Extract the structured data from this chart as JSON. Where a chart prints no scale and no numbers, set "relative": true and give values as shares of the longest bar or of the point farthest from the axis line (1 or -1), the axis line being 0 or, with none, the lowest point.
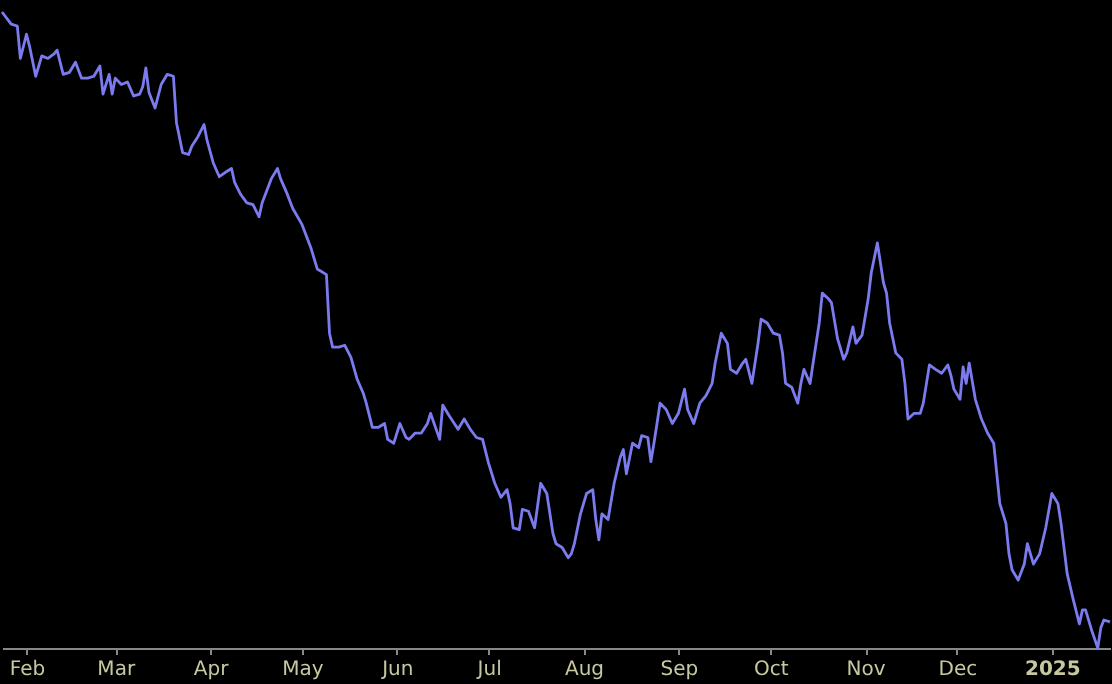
{
  "chart_data": {
    "type": "line",
    "relative": true,
    "xlim": [
      "2024-01-24",
      "2025-01-20"
    ],
    "xticks": [
      {
        "value": "2024-02-01",
        "label": "Feb"
      },
      {
        "value": "2024-03-01",
        "label": "Mar"
      },
      {
        "value": "2024-04-01",
        "label": "Apr"
      },
      {
        "value": "2024-05-01",
        "label": "May"
      },
      {
        "value": "2024-06-01",
        "label": "Jun"
      },
      {
        "value": "2024-07-01",
        "label": "Jul"
      },
      {
        "value": "2024-08-01",
        "label": "Aug"
      },
      {
        "value": "2024-09-01",
        "label": "Sep"
      },
      {
        "value": "2024-10-01",
        "label": "Oct"
      },
      {
        "value": "2024-11-01",
        "label": "Nov"
      },
      {
        "value": "2024-12-01",
        "label": "Dec"
      },
      {
        "value": "2025-01-01",
        "label": "2025"
      }
    ],
    "grid": false,
    "marker": "none",
    "line_style": "solid",
    "x": [
      "2024-01-24",
      "2024-01-27",
      "2024-01-29",
      "2024-01-30",
      "2024-02-01",
      "2024-02-02",
      "2024-02-04",
      "2024-02-06",
      "2024-02-08",
      "2024-02-10",
      "2024-02-11",
      "2024-02-13",
      "2024-02-15",
      "2024-02-17",
      "2024-02-19",
      "2024-02-21",
      "2024-02-23",
      "2024-02-25",
      "2024-02-26",
      "2024-02-28",
      "2024-02-29",
      "2024-03-01",
      "2024-03-03",
      "2024-03-05",
      "2024-03-07",
      "2024-03-09",
      "2024-03-10",
      "2024-03-11",
      "2024-03-12",
      "2024-03-14",
      "2024-03-16",
      "2024-03-18",
      "2024-03-20",
      "2024-03-21",
      "2024-03-23",
      "2024-03-25",
      "2024-03-26",
      "2024-03-28",
      "2024-03-30",
      "2024-03-31",
      "2024-04-02",
      "2024-04-04",
      "2024-04-06",
      "2024-04-08",
      "2024-04-09",
      "2024-04-11",
      "2024-04-13",
      "2024-04-15",
      "2024-04-17",
      "2024-04-18",
      "2024-04-21",
      "2024-04-23",
      "2024-04-24",
      "2024-04-26",
      "2024-04-28",
      "2024-05-01",
      "2024-05-04",
      "2024-05-06",
      "2024-05-09",
      "2024-05-10",
      "2024-05-11",
      "2024-05-13",
      "2024-05-15",
      "2024-05-17",
      "2024-05-19",
      "2024-05-21",
      "2024-05-22",
      "2024-05-24",
      "2024-05-26",
      "2024-05-28",
      "2024-05-29",
      "2024-05-31",
      "2024-06-02",
      "2024-06-04",
      "2024-06-05",
      "2024-06-07",
      "2024-06-09",
      "2024-06-11",
      "2024-06-12",
      "2024-06-15",
      "2024-06-16",
      "2024-06-18",
      "2024-06-21",
      "2024-06-23",
      "2024-06-25",
      "2024-06-27",
      "2024-06-29",
      "2024-07-01",
      "2024-07-03",
      "2024-07-05",
      "2024-07-07",
      "2024-07-08",
      "2024-07-09",
      "2024-07-11",
      "2024-07-12",
      "2024-07-14",
      "2024-07-16",
      "2024-07-18",
      "2024-07-20",
      "2024-07-22",
      "2024-07-23",
      "2024-07-25",
      "2024-07-27",
      "2024-07-28",
      "2024-07-29",
      "2024-07-31",
      "2024-08-02",
      "2024-08-04",
      "2024-08-05",
      "2024-08-06",
      "2024-08-07",
      "2024-08-09",
      "2024-08-11",
      "2024-08-13",
      "2024-08-14",
      "2024-08-15",
      "2024-08-17",
      "2024-08-19",
      "2024-08-20",
      "2024-08-22",
      "2024-08-23",
      "2024-08-24",
      "2024-08-25",
      "2024-08-26",
      "2024-08-28",
      "2024-08-30",
      "2024-09-01",
      "2024-09-03",
      "2024-09-04",
      "2024-09-06",
      "2024-09-08",
      "2024-09-10",
      "2024-09-12",
      "2024-09-13",
      "2024-09-15",
      "2024-09-17",
      "2024-09-18",
      "2024-09-20",
      "2024-09-22",
      "2024-09-23",
      "2024-09-25",
      "2024-09-27",
      "2024-09-28",
      "2024-09-30",
      "2024-10-02",
      "2024-10-04",
      "2024-10-05",
      "2024-10-06",
      "2024-10-08",
      "2024-10-10",
      "2024-10-11",
      "2024-10-12",
      "2024-10-14",
      "2024-10-15",
      "2024-10-17",
      "2024-10-18",
      "2024-10-20",
      "2024-10-21",
      "2024-10-23",
      "2024-10-25",
      "2024-10-26",
      "2024-10-28",
      "2024-10-29",
      "2024-10-31",
      "2024-11-02",
      "2024-11-03",
      "2024-11-05",
      "2024-11-07",
      "2024-11-08",
      "2024-11-09",
      "2024-11-11",
      "2024-11-13",
      "2024-11-14",
      "2024-11-15",
      "2024-11-17",
      "2024-11-19",
      "2024-11-20",
      "2024-11-22",
      "2024-11-24",
      "2024-11-26",
      "2024-11-28",
      "2024-11-29",
      "2024-11-30",
      "2024-12-02",
      "2024-12-03",
      "2024-12-04",
      "2024-12-05",
      "2024-12-07",
      "2024-12-09",
      "2024-12-11",
      "2024-12-13",
      "2024-12-15",
      "2024-12-17",
      "2024-12-18",
      "2024-12-19",
      "2024-12-21",
      "2024-12-23",
      "2024-12-24",
      "2024-12-26",
      "2024-12-28",
      "2024-12-30",
      "2025-01-01",
      "2025-01-03",
      "2025-01-04",
      "2025-01-06",
      "2025-01-08",
      "2025-01-10",
      "2025-01-11",
      "2025-01-12",
      "2025-01-14",
      "2025-01-16",
      "2025-01-17",
      "2025-01-18",
      "2025-01-20"
    ],
    "series": [
      {
        "color": "#7b7bef",
        "values": [
          1,
          0.981,
          0.978,
          0.927,
          0.965,
          0.946,
          0.899,
          0.931,
          0.927,
          0.934,
          0.94,
          0.902,
          0.905,
          0.921,
          0.896,
          0.896,
          0.899,
          0.915,
          0.871,
          0.902,
          0.871,
          0.896,
          0.886,
          0.89,
          0.868,
          0.871,
          0.883,
          0.912,
          0.874,
          0.849,
          0.886,
          0.902,
          0.899,
          0.826,
          0.779,
          0.776,
          0.789,
          0.804,
          0.823,
          0.798,
          0.763,
          0.741,
          0.748,
          0.754,
          0.732,
          0.713,
          0.7,
          0.697,
          0.678,
          0.7,
          0.738,
          0.754,
          0.738,
          0.716,
          0.691,
          0.666,
          0.628,
          0.596,
          0.587,
          0.495,
          0.473,
          0.473,
          0.476,
          0.457,
          0.423,
          0.401,
          0.385,
          0.347,
          0.347,
          0.353,
          0.328,
          0.322,
          0.353,
          0.331,
          0.328,
          0.338,
          0.338,
          0.353,
          0.369,
          0.328,
          0.382,
          0.366,
          0.344,
          0.36,
          0.344,
          0.331,
          0.328,
          0.29,
          0.259,
          0.237,
          0.249,
          0.227,
          0.189,
          0.186,
          0.218,
          0.215,
          0.189,
          0.259,
          0.243,
          0.18,
          0.164,
          0.158,
          0.142,
          0.148,
          0.164,
          0.211,
          0.243,
          0.249,
          0.202,
          0.17,
          0.211,
          0.202,
          0.259,
          0.3,
          0.312,
          0.274,
          0.322,
          0.315,
          0.334,
          0.331,
          0.293,
          0.322,
          0.353,
          0.385,
          0.375,
          0.353,
          0.369,
          0.407,
          0.375,
          0.353,
          0.385,
          0.397,
          0.416,
          0.448,
          0.495,
          0.479,
          0.438,
          0.432,
          0.448,
          0.454,
          0.416,
          0.479,
          0.517,
          0.511,
          0.495,
          0.492,
          0.464,
          0.416,
          0.41,
          0.385,
          0.416,
          0.438,
          0.416,
          0.448,
          0.511,
          0.558,
          0.549,
          0.543,
          0.486,
          0.454,
          0.464,
          0.505,
          0.479,
          0.492,
          0.549,
          0.59,
          0.637,
          0.574,
          0.558,
          0.511,
          0.464,
          0.454,
          0.416,
          0.36,
          0.369,
          0.369,
          0.385,
          0.445,
          0.438,
          0.432,
          0.445,
          0.429,
          0.407,
          0.391,
          0.442,
          0.416,
          0.448,
          0.391,
          0.36,
          0.338,
          0.322,
          0.227,
          0.196,
          0.148,
          0.123,
          0.107,
          0.132,
          0.164,
          0.132,
          0.148,
          0.189,
          0.243,
          0.227,
          0.196,
          0.117,
          0.076,
          0.038,
          0.06,
          0.06,
          0.028,
          0,
          0.032,
          0.044,
          0.041
        ]
      }
    ]
  }
}
